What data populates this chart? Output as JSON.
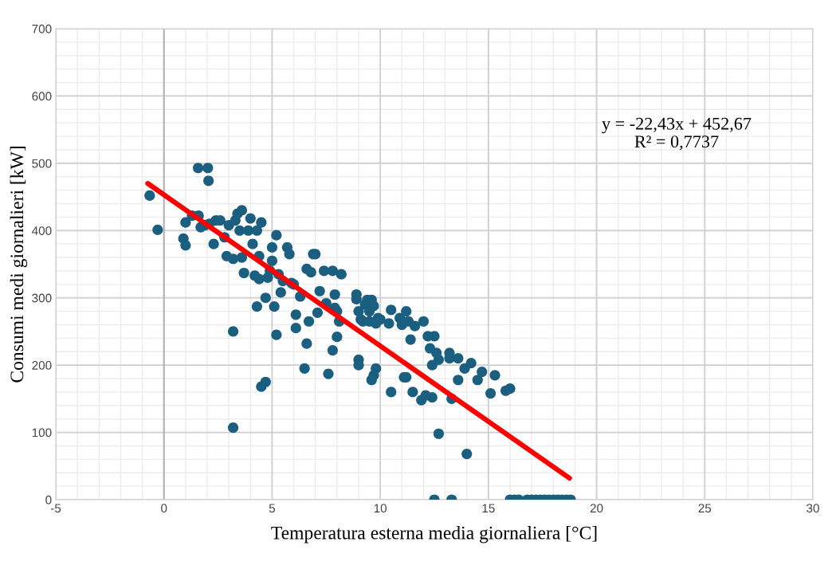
{
  "chart_data": {
    "type": "scatter",
    "xlabel": "Temperatura esterna media giornaliera [°C]",
    "ylabel": "Consumi medi giornalieri [kW]",
    "xlim": [
      -5,
      30
    ],
    "xticks": [
      -5,
      0,
      5,
      10,
      15,
      20,
      25,
      30
    ],
    "ylim": [
      0,
      700
    ],
    "yticks": [
      0,
      100,
      200,
      300,
      400,
      500,
      600,
      700
    ],
    "grid": true,
    "annotations": [
      "y = -22,43x + 452,67\nR² = 0,7737"
    ],
    "series": [
      {
        "marker": "circle",
        "color": "#1a5e80",
        "x": [
          -0.66,
          -0.29,
          1.58,
          2.03,
          2.06,
          1.0,
          0.9,
          1.0,
          1.3,
          1.6,
          1.7,
          1.9,
          2.1,
          2.3,
          2.4,
          2.6,
          2.8,
          2.9,
          3.0,
          3.2,
          3.3,
          3.4,
          3.5,
          3.6,
          3.6,
          3.7,
          3.9,
          4.0,
          4.1,
          4.2,
          4.3,
          4.4,
          4.4,
          4.5,
          4.3,
          4.7,
          4.8,
          4.9,
          5.0,
          5.0,
          5.2,
          5.1,
          5.2,
          5.3,
          5.4,
          5.5,
          5.7,
          5.8,
          5.9,
          6.0,
          6.1,
          6.1,
          6.3,
          6.5,
          6.6,
          6.6,
          6.7,
          6.8,
          6.9,
          7.0,
          7.1,
          7.2,
          7.4,
          7.5,
          7.6,
          7.8,
          7.9,
          7.8,
          7.9,
          8.0,
          8.1,
          8.2,
          8.0,
          3.2,
          3.2,
          4.5,
          4.7,
          8.9,
          8.9,
          9.0,
          9.0,
          9.0,
          9.1,
          9.2,
          9.3,
          9.4,
          9.5,
          9.6,
          9.7,
          9.5,
          9.6,
          9.7,
          9.8,
          9.9,
          9.8,
          10.0,
          10.5,
          10.4,
          10.5,
          10.9,
          11.0,
          11.1,
          11.2,
          11.2,
          11.3,
          11.4,
          11.5,
          11.6,
          11.9,
          12.0,
          12.1,
          12.2,
          12.3,
          12.4,
          12.4,
          12.5,
          12.6,
          12.7,
          12.7,
          12.5,
          13.2,
          13.2,
          13.3,
          13.3,
          13.6,
          13.6,
          13.9,
          14.0,
          14.2,
          14.5,
          14.7,
          15.1,
          15.3,
          15.8,
          16.0,
          16.0,
          16.2,
          16.4,
          16.8,
          17.0,
          17.2,
          17.4,
          17.6,
          17.8,
          18.0,
          18.2,
          18.4,
          18.6,
          18.8
        ],
        "values": [
          452,
          401,
          493,
          493,
          474,
          412,
          388,
          378,
          422,
          422,
          405,
          408,
          410,
          380,
          415,
          415,
          390,
          362,
          408,
          358,
          415,
          425,
          400,
          430,
          360,
          337,
          400,
          418,
          380,
          333,
          400,
          328,
          362,
          412,
          287,
          300,
          330,
          340,
          355,
          375,
          393,
          287,
          245,
          335,
          308,
          325,
          375,
          365,
          322,
          320,
          275,
          255,
          302,
          195,
          232,
          343,
          265,
          338,
          365,
          365,
          278,
          310,
          340,
          292,
          187,
          340,
          305,
          222,
          285,
          280,
          265,
          335,
          242,
          250,
          107,
          168,
          175,
          305,
          298,
          208,
          200,
          280,
          268,
          265,
          290,
          297,
          280,
          297,
          288,
          265,
          178,
          185,
          195,
          270,
          262,
          268,
          282,
          262,
          160,
          270,
          260,
          182,
          182,
          280,
          265,
          238,
          160,
          258,
          148,
          265,
          155,
          243,
          225,
          200,
          152,
          243,
          218,
          208,
          98,
          0,
          218,
          210,
          150,
          0,
          210,
          178,
          195,
          68,
          203,
          178,
          190,
          158,
          185,
          162,
          165,
          0,
          0,
          0,
          0,
          0,
          0,
          0,
          0,
          0,
          0,
          0,
          0,
          0,
          0
        ]
      },
      {
        "type": "line",
        "color": "#ff0000",
        "x": [
          -0.75,
          18.75
        ],
        "values": [
          470,
          32
        ],
        "marker": "none"
      }
    ]
  }
}
